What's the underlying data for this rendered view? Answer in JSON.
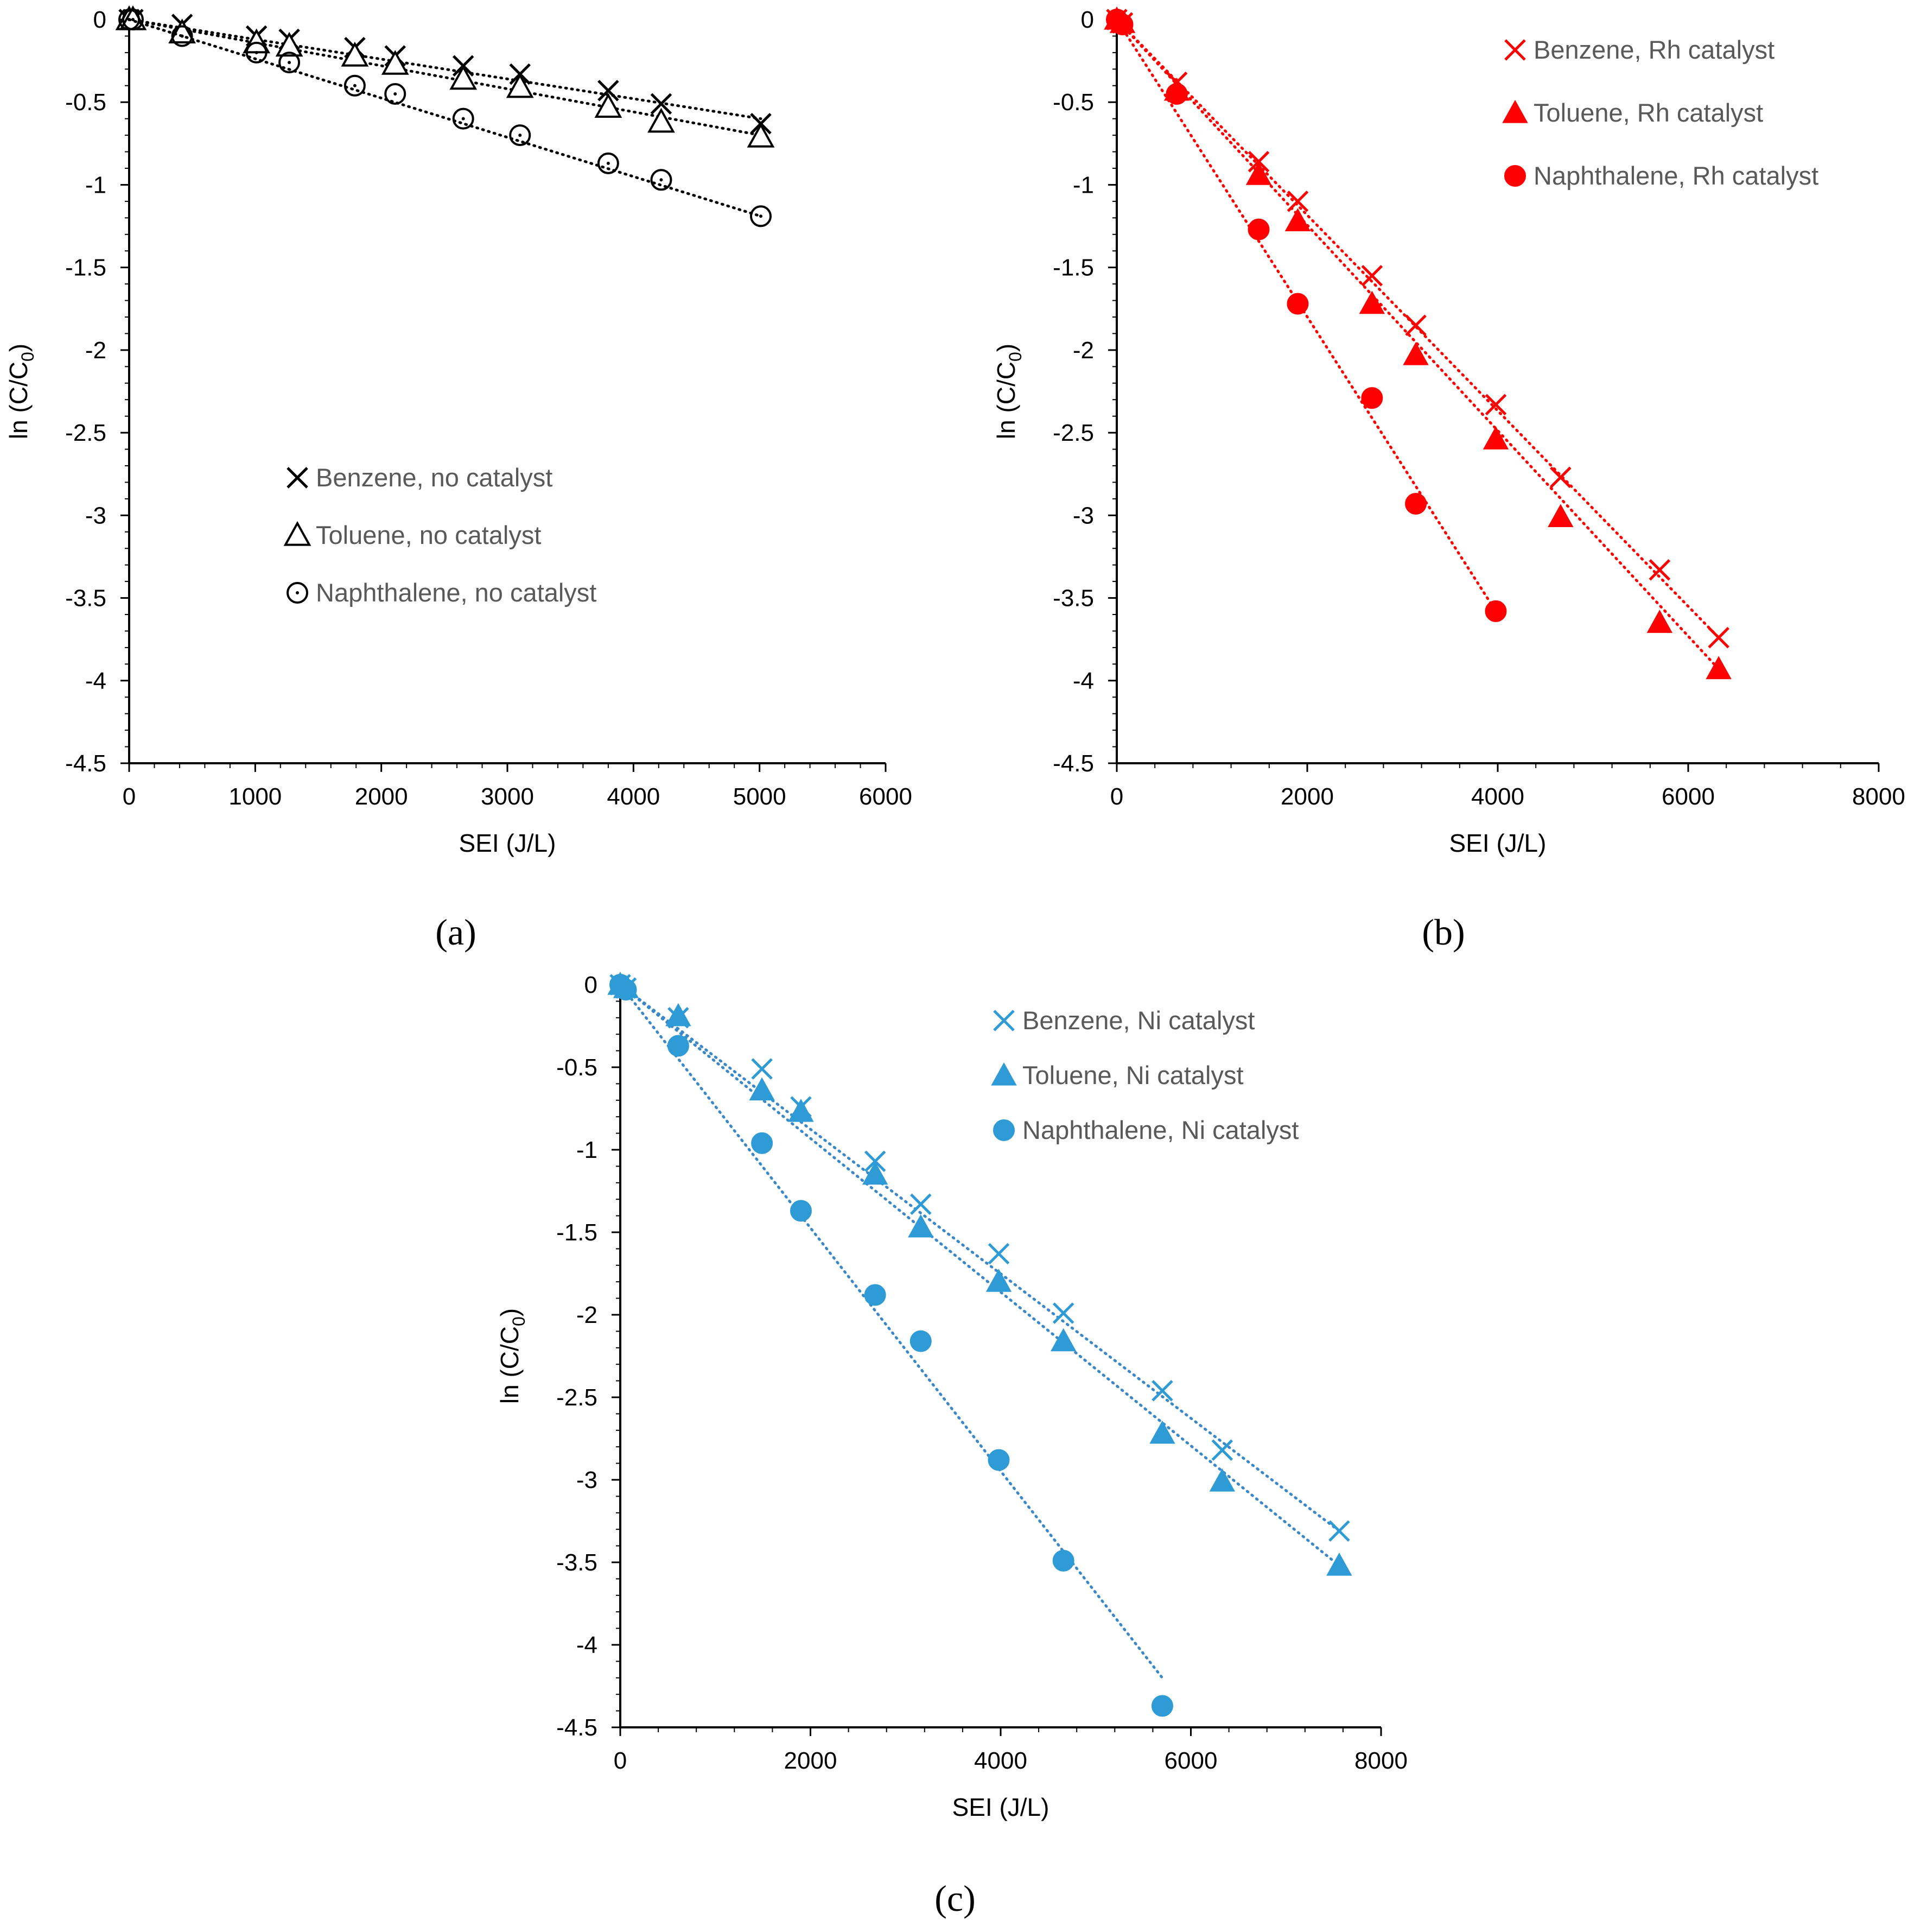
{
  "figure": {
    "panel_labels": [
      "(a)",
      "(b)",
      "(c)"
    ]
  },
  "colors": {
    "panel_a": "#000000",
    "panel_b": "#ff0000",
    "panel_c_marker": "#2e9bd6",
    "panel_c_line": "#3a88c8",
    "legend_text": "#595959",
    "axis": "#000000"
  },
  "chart_data": [
    {
      "id": "a",
      "type": "scatter",
      "title": "",
      "panel_label": "(a)",
      "xlabel": "SEI (J/L)",
      "ylabel": "ln (C/C",
      "ylabel_sub": "0",
      "ylabel_end": ")",
      "xlim": [
        0,
        6000
      ],
      "ylim": [
        -4.5,
        0
      ],
      "xticks": [
        0,
        1000,
        2000,
        3000,
        4000,
        5000,
        6000
      ],
      "xtick_labels": [
        "0",
        "1000",
        "2000",
        "3000",
        "4000",
        "5000",
        "6000"
      ],
      "yticks": [
        0,
        -0.5,
        -1,
        -1.5,
        -2,
        -2.5,
        -3,
        -3.5,
        -4,
        -4.5
      ],
      "ytick_labels": [
        "0",
        "-0.5",
        "-1",
        "-1.5",
        "-2",
        "-2.5",
        "-3",
        "-3.5",
        "-4",
        "-4.5"
      ],
      "grid": false,
      "legend_position": "center-left",
      "series": [
        {
          "name": "Benzene, no catalyst",
          "marker": "x",
          "color": "#000000",
          "x": [
            0,
            30,
            420,
            1010,
            1270,
            1790,
            2110,
            2650,
            3100,
            3800,
            4220,
            5010
          ],
          "y": [
            0,
            0,
            -0.03,
            -0.1,
            -0.12,
            -0.17,
            -0.22,
            -0.28,
            -0.33,
            -0.43,
            -0.51,
            -0.63
          ],
          "trend": [
            [
              0,
              0
            ],
            [
              5010,
              -0.6
            ]
          ]
        },
        {
          "name": "Toluene, no catalyst",
          "marker": "triangle-open",
          "color": "#000000",
          "x": [
            0,
            30,
            420,
            1010,
            1270,
            1790,
            2110,
            2650,
            3100,
            3800,
            4220,
            5010
          ],
          "y": [
            0,
            0,
            -0.08,
            -0.14,
            -0.16,
            -0.22,
            -0.27,
            -0.36,
            -0.41,
            -0.53,
            -0.62,
            -0.71
          ],
          "trend": [
            [
              0,
              0
            ],
            [
              5010,
              -0.7
            ]
          ]
        },
        {
          "name": "Naphthalene, no catalyst",
          "marker": "circle-open",
          "color": "#000000",
          "x": [
            0,
            30,
            420,
            1010,
            1270,
            1790,
            2110,
            2650,
            3100,
            3800,
            4220,
            5010
          ],
          "y": [
            0,
            0,
            -0.1,
            -0.2,
            -0.26,
            -0.4,
            -0.45,
            -0.6,
            -0.7,
            -0.87,
            -0.97,
            -1.19
          ],
          "trend": [
            [
              0,
              0
            ],
            [
              5010,
              -1.19
            ]
          ]
        }
      ]
    },
    {
      "id": "b",
      "type": "scatter",
      "title": "",
      "panel_label": "(b)",
      "xlabel": "SEI (J/L)",
      "ylabel": "ln (C/C",
      "ylabel_sub": "0",
      "ylabel_end": ")",
      "xlim": [
        0,
        8000
      ],
      "ylim": [
        -4.5,
        0
      ],
      "xticks": [
        0,
        2000,
        4000,
        6000,
        8000
      ],
      "xtick_labels": [
        "0",
        "2000",
        "4000",
        "6000",
        "8000"
      ],
      "yticks": [
        0,
        -0.5,
        -1,
        -1.5,
        -2,
        -2.5,
        -3,
        -3.5,
        -4,
        -4.5
      ],
      "ytick_labels": [
        "0",
        "-0.5",
        "-1",
        "-1.5",
        "-2",
        "-2.5",
        "-3",
        "-3.5",
        "-4",
        "-4.5"
      ],
      "grid": false,
      "legend_position": "top-right",
      "series": [
        {
          "name": "Benzene, Rh catalyst",
          "marker": "x",
          "color": "#ff0000",
          "x": [
            0,
            60,
            630,
            1490,
            1900,
            2680,
            3140,
            3980,
            4660,
            5700,
            6320
          ],
          "y": [
            0,
            -0.02,
            -0.38,
            -0.86,
            -1.1,
            -1.55,
            -1.85,
            -2.33,
            -2.77,
            -3.33,
            -3.74
          ],
          "trend": [
            [
              0,
              0
            ],
            [
              6320,
              -3.74
            ]
          ]
        },
        {
          "name": "Toluene, Rh catalyst",
          "marker": "triangle",
          "color": "#ff0000",
          "x": [
            0,
            60,
            630,
            1490,
            1900,
            2680,
            3140,
            3980,
            4660,
            5700,
            6320
          ],
          "y": [
            0,
            -0.02,
            -0.43,
            -0.94,
            -1.22,
            -1.72,
            -2.03,
            -2.54,
            -3.01,
            -3.65,
            -3.93
          ],
          "trend": [
            [
              0,
              0
            ],
            [
              6320,
              -3.93
            ]
          ]
        },
        {
          "name": "Naphthalene, Rh catalyst",
          "marker": "circle",
          "color": "#ff0000",
          "x": [
            0,
            60,
            630,
            1490,
            1900,
            2680,
            3140,
            3980
          ],
          "y": [
            0,
            -0.03,
            -0.45,
            -1.27,
            -1.72,
            -2.29,
            -2.93,
            -3.58
          ],
          "trend": [
            [
              0,
              0
            ],
            [
              3980,
              -3.58
            ]
          ]
        }
      ]
    },
    {
      "id": "c",
      "type": "scatter",
      "title": "",
      "panel_label": "(c)",
      "xlabel": "SEI (J/L)",
      "ylabel": "ln (C/C",
      "ylabel_sub": "0",
      "ylabel_end": ")",
      "xlim": [
        0,
        8000
      ],
      "ylim": [
        -4.5,
        0
      ],
      "xticks": [
        0,
        2000,
        4000,
        6000,
        8000
      ],
      "xtick_labels": [
        "0",
        "2000",
        "4000",
        "6000",
        "8000"
      ],
      "yticks": [
        0,
        -0.5,
        -1,
        -1.5,
        -2,
        -2.5,
        -3,
        -3.5,
        -4,
        -4.5
      ],
      "ytick_labels": [
        "0",
        "-0.5",
        "-1",
        "-1.5",
        "-2",
        "-2.5",
        "-3",
        "-3.5",
        "-4",
        "-4.5"
      ],
      "grid": false,
      "legend_position": "top-right",
      "series": [
        {
          "name": "Benzene, Ni catalyst",
          "marker": "x",
          "color": "#2e9bd6",
          "x": [
            0,
            60,
            610,
            1490,
            1900,
            2680,
            3160,
            3980,
            4660,
            5700,
            6330,
            7560
          ],
          "y": [
            0,
            -0.02,
            -0.2,
            -0.51,
            -0.74,
            -1.07,
            -1.33,
            -1.63,
            -1.99,
            -2.46,
            -2.82,
            -3.31
          ],
          "trend": [
            [
              0,
              0
            ],
            [
              7560,
              -3.31
            ]
          ]
        },
        {
          "name": "Toluene, Ni catalyst",
          "marker": "triangle",
          "color": "#2e9bd6",
          "x": [
            0,
            60,
            610,
            1490,
            1900,
            2680,
            3160,
            3980,
            4660,
            5700,
            6330,
            7560
          ],
          "y": [
            0,
            -0.02,
            -0.19,
            -0.64,
            -0.77,
            -1.15,
            -1.47,
            -1.8,
            -2.16,
            -2.72,
            -3.01,
            -3.52
          ],
          "trend": [
            [
              0,
              0
            ],
            [
              7560,
              -3.52
            ]
          ]
        },
        {
          "name": "Naphthalene, Ni catalyst",
          "marker": "circle",
          "color": "#2e9bd6",
          "x": [
            0,
            60,
            610,
            1490,
            1900,
            2680,
            3160,
            3980,
            4660,
            5700
          ],
          "y": [
            0,
            -0.03,
            -0.37,
            -0.96,
            -1.37,
            -1.88,
            -2.16,
            -2.88,
            -3.49,
            -4.37
          ],
          "trend": [
            [
              0,
              0
            ],
            [
              5700,
              -4.2
            ]
          ]
        }
      ]
    }
  ]
}
